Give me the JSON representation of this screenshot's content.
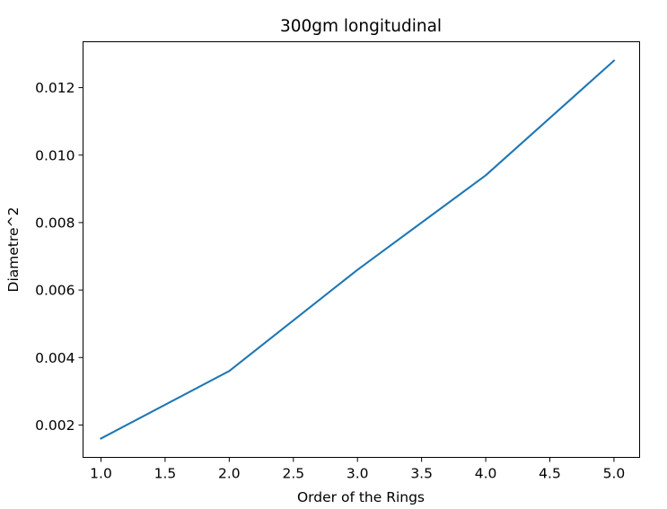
{
  "chart_data": {
    "type": "line",
    "title": "300gm longitudinal",
    "xlabel": "Order of the Rings",
    "ylabel": "Diametre^2",
    "x": [
      1.0,
      2.0,
      3.0,
      4.0,
      5.0
    ],
    "series": [
      {
        "values": [
          0.0016,
          0.0036,
          0.0066,
          0.0094,
          0.0128
        ],
        "color": "#1f77b4"
      }
    ],
    "xlim": [
      0.86,
      5.2
    ],
    "ylim": [
      0.00104,
      0.01336
    ],
    "xticks": [
      "1.0",
      "1.5",
      "2.0",
      "2.5",
      "3.0",
      "3.5",
      "4.0",
      "4.5",
      "5.0"
    ],
    "yticks": [
      "0.002",
      "0.004",
      "0.006",
      "0.008",
      "0.010",
      "0.012"
    ],
    "grid": false,
    "legend": false
  }
}
